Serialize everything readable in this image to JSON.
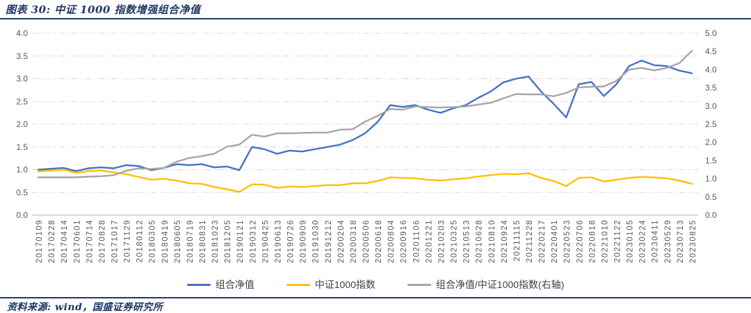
{
  "figure": {
    "title": "图表 30: 中证 1000 指数增强组合净值"
  },
  "footer": {
    "source": "资料来源: wind，国盛证券研究所"
  },
  "colors": {
    "accent_navy": "#1f3864",
    "series_portfolio_blue": "#4472c4",
    "series_index_yellow": "#ffc000",
    "series_ratio_gray": "#a6a6a6",
    "gridline": "#d9d9d9",
    "axis_line": "#bfbfbf",
    "tick_text": "#595959",
    "legend_text": "#3f3f3f"
  },
  "chart_data": {
    "type": "line",
    "title": "中证 1000 指数增强组合净值",
    "xlabel": "",
    "ylabel": "",
    "grid": "horizontal dash-dot",
    "legend_position": "bottom",
    "left_axis": {
      "min": 0.0,
      "max": 4.0,
      "step": 0.5,
      "ticks": [
        "0.0",
        "0.5",
        "1.0",
        "1.5",
        "2.0",
        "2.5",
        "3.0",
        "3.5",
        "4.0"
      ]
    },
    "right_axis": {
      "min": 0.0,
      "max": 5.0,
      "step": 0.5,
      "ticks": [
        "0.0",
        "0.5",
        "1.0",
        "1.5",
        "2.0",
        "2.5",
        "3.0",
        "3.5",
        "4.0",
        "4.5",
        "5.0"
      ]
    },
    "categories": [
      "20170109",
      "20170228",
      "20170414",
      "20170601",
      "20170714",
      "20170828",
      "20171017",
      "20171129",
      "20180112",
      "20180305",
      "20180419",
      "20180605",
      "20180719",
      "20180831",
      "20181023",
      "20181205",
      "20190121",
      "20190312",
      "20190425",
      "20190613",
      "20190726",
      "20190909",
      "20191030",
      "20191212",
      "20200204",
      "20200318",
      "20200506",
      "20200618",
      "20200804",
      "20200916",
      "20201106",
      "20201221",
      "20210203",
      "20210325",
      "20210513",
      "20210628",
      "20210810",
      "20210924",
      "20211115",
      "20211228",
      "20220217",
      "20220401",
      "20220523",
      "20220706",
      "20220818",
      "20221010",
      "20221122",
      "20230105",
      "20230224",
      "20230411",
      "20230529",
      "20230713",
      "20230825"
    ],
    "series": [
      {
        "name": "组合净值",
        "axis": "left",
        "color": "#4472c4",
        "values": [
          1.0,
          1.02,
          1.04,
          0.97,
          1.03,
          1.05,
          1.03,
          1.1,
          1.08,
          0.99,
          1.04,
          1.12,
          1.1,
          1.12,
          1.05,
          1.07,
          0.99,
          1.5,
          1.45,
          1.35,
          1.42,
          1.4,
          1.45,
          1.5,
          1.55,
          1.65,
          1.8,
          2.05,
          2.42,
          2.38,
          2.42,
          2.32,
          2.25,
          2.35,
          2.42,
          2.58,
          2.72,
          2.92,
          3.0,
          3.05,
          2.72,
          2.45,
          2.15,
          2.88,
          2.93,
          2.62,
          2.88,
          3.28,
          3.4,
          3.3,
          3.28,
          3.18,
          3.12
        ]
      },
      {
        "name": "中证1000指数",
        "axis": "left",
        "color": "#ffc000",
        "values": [
          0.96,
          0.98,
          1.0,
          0.93,
          0.97,
          0.98,
          0.94,
          0.9,
          0.84,
          0.78,
          0.8,
          0.76,
          0.7,
          0.69,
          0.62,
          0.57,
          0.51,
          0.68,
          0.67,
          0.6,
          0.63,
          0.62,
          0.64,
          0.66,
          0.66,
          0.7,
          0.7,
          0.75,
          0.83,
          0.82,
          0.81,
          0.78,
          0.76,
          0.79,
          0.81,
          0.85,
          0.88,
          0.91,
          0.9,
          0.92,
          0.82,
          0.75,
          0.64,
          0.82,
          0.83,
          0.74,
          0.78,
          0.82,
          0.84,
          0.83,
          0.81,
          0.76,
          0.69
        ]
      },
      {
        "name": "组合净值/中证1000指数(右轴)",
        "axis": "right",
        "color": "#a6a6a6",
        "values": [
          1.04,
          1.04,
          1.04,
          1.04,
          1.06,
          1.07,
          1.1,
          1.22,
          1.29,
          1.27,
          1.3,
          1.47,
          1.57,
          1.62,
          1.69,
          1.88,
          1.94,
          2.21,
          2.16,
          2.25,
          2.25,
          2.26,
          2.27,
          2.27,
          2.35,
          2.36,
          2.57,
          2.73,
          2.92,
          2.9,
          2.99,
          2.97,
          2.96,
          2.97,
          2.99,
          3.04,
          3.09,
          3.21,
          3.33,
          3.32,
          3.32,
          3.27,
          3.36,
          3.51,
          3.53,
          3.54,
          3.69,
          4.0,
          4.05,
          3.98,
          4.05,
          4.18,
          4.52
        ]
      }
    ]
  }
}
